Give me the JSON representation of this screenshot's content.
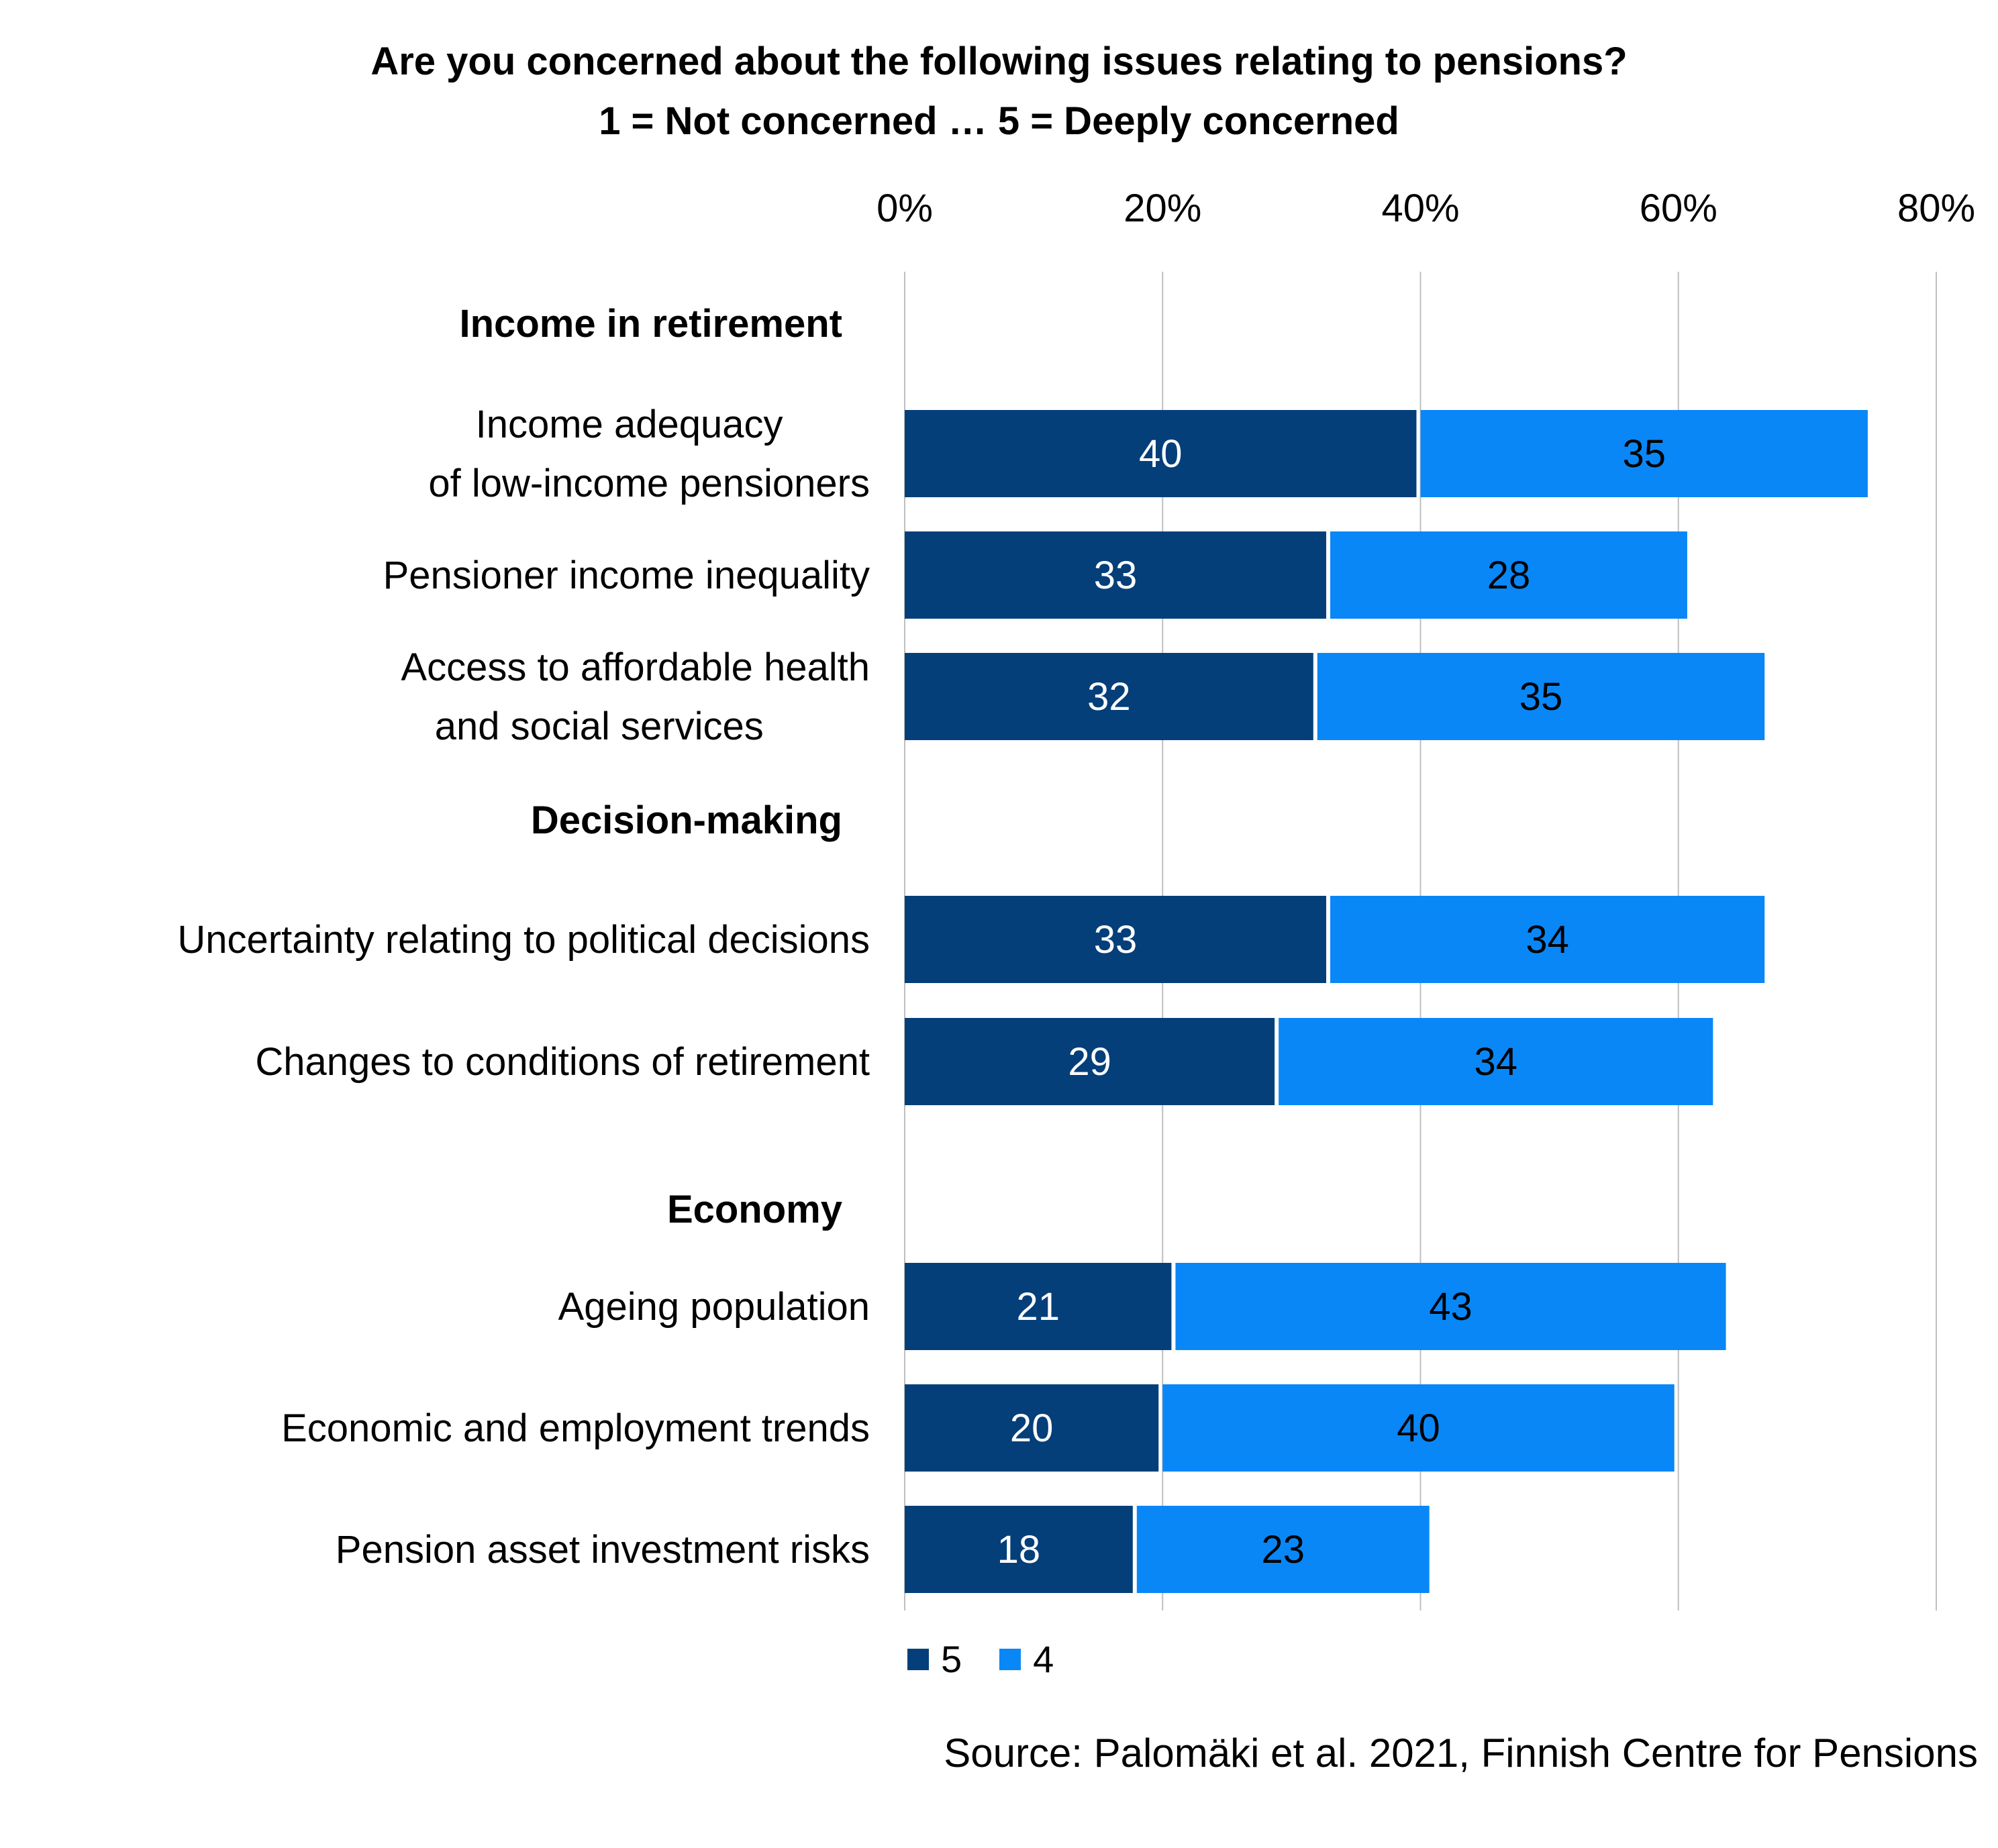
{
  "title_line1": "Are you concerned about the following issues relating to pensions?",
  "title_line2": "1 = Not concerned … 5 = Deeply concerned",
  "source": "Source: Palomäki et al. 2021, Finnish Centre for Pensions",
  "colors": {
    "series_5": "#043f7a",
    "series_4": "#0a87f7",
    "grid": "#bfbfbf"
  },
  "chart_data": {
    "type": "bar",
    "orientation": "horizontal",
    "stacked": true,
    "x_ticks": [
      "0%",
      "20%",
      "40%",
      "60%",
      "80%"
    ],
    "xlim": [
      0,
      80
    ],
    "grid": true,
    "legend_position": "bottom",
    "groups": [
      {
        "heading": "Income in retirement",
        "items": [
          {
            "label": [
              "Income adequacy",
              "of low-income pensioners"
            ],
            "v5": 40,
            "v4": 35
          },
          {
            "label": [
              "Pensioner income inequality"
            ],
            "v5": 33,
            "v4": 28
          },
          {
            "label": [
              "Access to affordable health",
              "and social services"
            ],
            "v5": 32,
            "v4": 35
          }
        ]
      },
      {
        "heading": "Decision-making",
        "items": [
          {
            "label": [
              "Uncertainty relating to political decisions"
            ],
            "v5": 33,
            "v4": 34
          },
          {
            "label": [
              "Changes to conditions of retirement"
            ],
            "v5": 29,
            "v4": 34
          }
        ]
      },
      {
        "heading": "Economy",
        "items": [
          {
            "label": [
              "Ageing population"
            ],
            "v5": 21,
            "v4": 43
          },
          {
            "label": [
              "Economic and employment trends"
            ],
            "v5": 20,
            "v4": 40
          },
          {
            "label": [
              "Pension asset investment risks"
            ],
            "v5": 18,
            "v4": 23
          }
        ]
      }
    ],
    "series": [
      {
        "name": "5",
        "key": "v5"
      },
      {
        "name": "4",
        "key": "v4"
      }
    ]
  }
}
